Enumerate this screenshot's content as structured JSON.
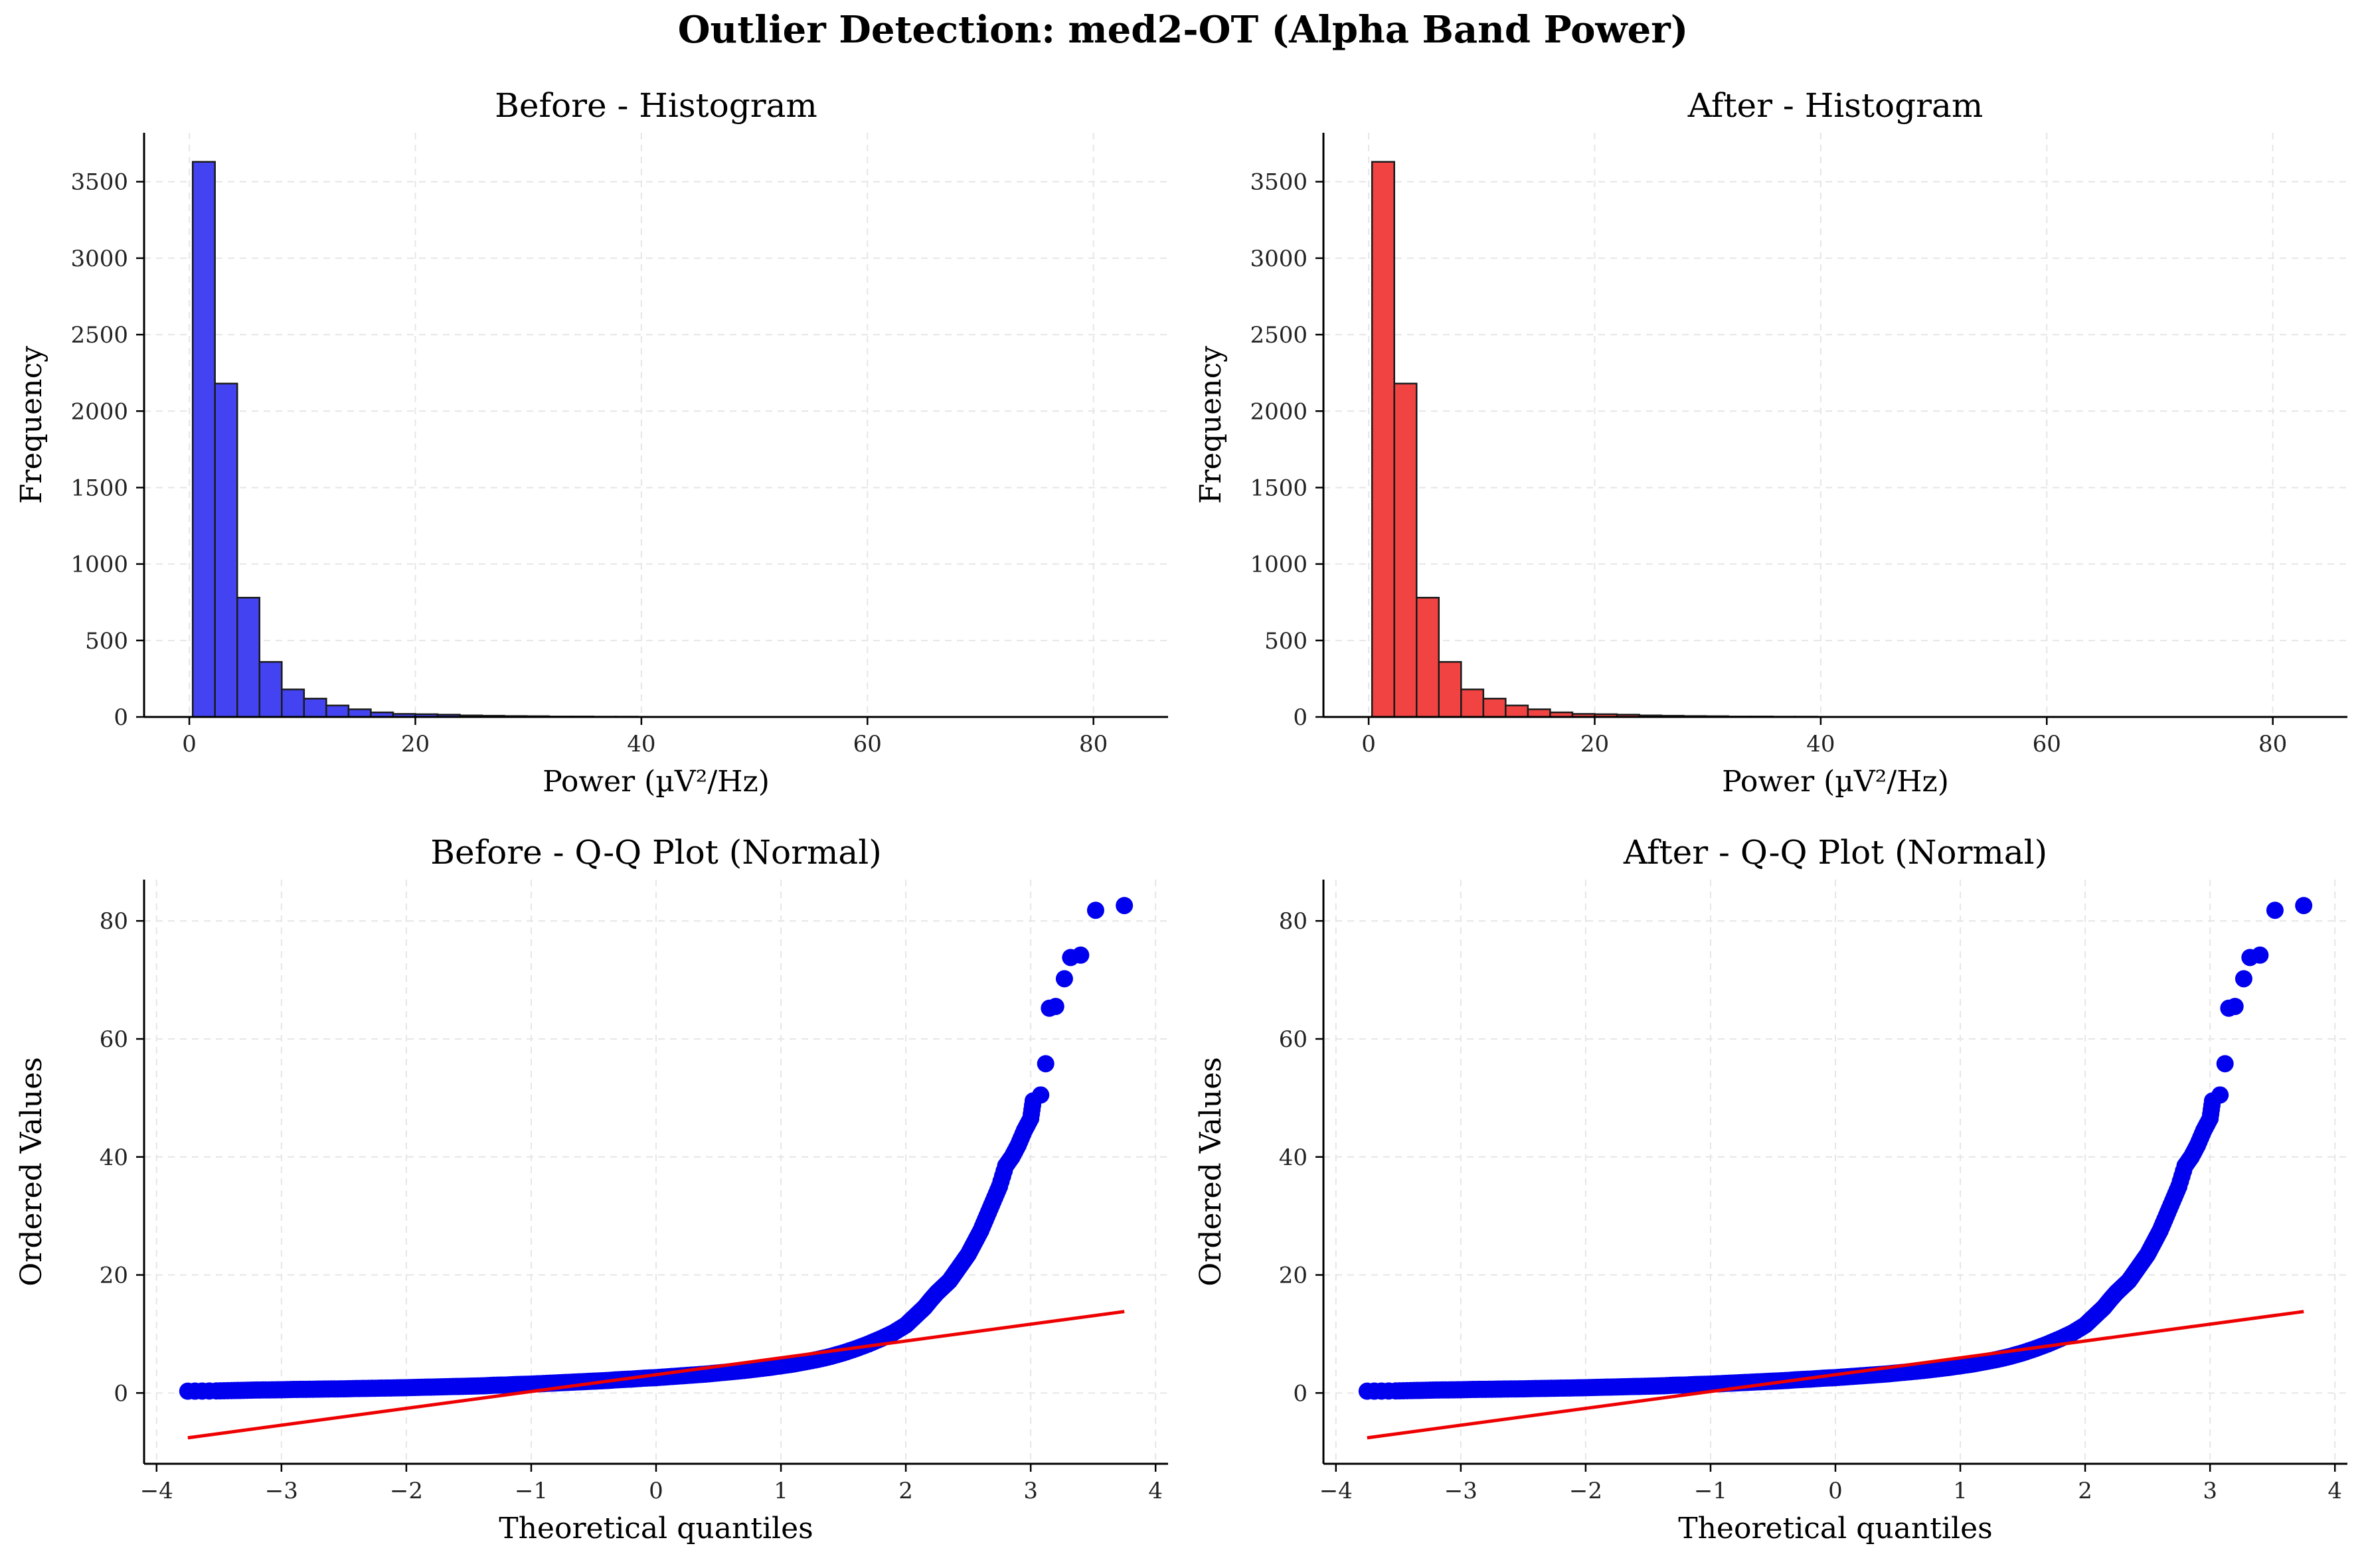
{
  "figure": {
    "title": "Outlier Detection: med2-OT (Alpha Band Power)"
  },
  "colors": {
    "before_bar": "#4343f2",
    "after_bar": "#f24343",
    "bar_edge": "#1a1a1a",
    "qq_points": "#0000ee",
    "qq_line": "#ee0000",
    "grid": "#e6e6e6",
    "axis": "#000000"
  },
  "chart_data": [
    {
      "type": "bar",
      "panel": "before-histogram",
      "title": "Before - Histogram",
      "xlabel": "Power (µV²/Hz)",
      "ylabel": "Frequency",
      "xlim": [
        -4.0,
        86.6
      ],
      "ylim": [
        0,
        3820
      ],
      "xticks": [
        0,
        20,
        40,
        60,
        80
      ],
      "yticks": [
        0,
        500,
        1000,
        1500,
        2000,
        2500,
        3000,
        3500
      ],
      "grid": true,
      "bin_start": 0.3,
      "bin_width": 1.97,
      "values": [
        3630,
        2180,
        780,
        360,
        180,
        120,
        75,
        50,
        30,
        20,
        18,
        15,
        10,
        8,
        6,
        5,
        3,
        3,
        2,
        2,
        1,
        1,
        1,
        1,
        1,
        1,
        0,
        0,
        0,
        0,
        0,
        0,
        0,
        0,
        0,
        0,
        0,
        0,
        0,
        0,
        0,
        0
      ]
    },
    {
      "type": "bar",
      "panel": "after-histogram",
      "title": "After - Histogram",
      "xlabel": "Power (µV²/Hz)",
      "ylabel": "Frequency",
      "xlim": [
        -4.0,
        86.6
      ],
      "ylim": [
        0,
        3820
      ],
      "xticks": [
        0,
        20,
        40,
        60,
        80
      ],
      "yticks": [
        0,
        500,
        1000,
        1500,
        2000,
        2500,
        3000,
        3500
      ],
      "grid": true,
      "bin_start": 0.3,
      "bin_width": 1.97,
      "values": [
        3630,
        2180,
        780,
        360,
        180,
        120,
        75,
        50,
        30,
        20,
        18,
        15,
        10,
        8,
        6,
        5,
        3,
        3,
        2,
        2,
        1,
        1,
        1,
        1,
        1,
        1,
        0,
        0,
        0,
        0,
        0,
        0,
        0,
        0,
        0,
        0,
        0,
        0,
        0,
        0,
        0,
        0
      ]
    },
    {
      "type": "scatter",
      "panel": "before-qq",
      "title": "Before - Q-Q Plot (Normal)",
      "xlabel": "Theoretical quantiles",
      "ylabel": "Ordered Values",
      "xlim": [
        -4.1,
        4.1
      ],
      "ylim": [
        -12,
        87
      ],
      "xticks": [
        -4,
        -3,
        -2,
        -1,
        0,
        1,
        2,
        3,
        4
      ],
      "yticks": [
        0,
        20,
        40,
        60,
        80
      ],
      "grid": true,
      "points": [
        [
          -3.75,
          0.3
        ],
        [
          -3.52,
          0.35
        ],
        [
          -3.4,
          0.4
        ],
        [
          -3.3,
          0.45
        ],
        [
          -3.2,
          0.5
        ],
        [
          -3.1,
          0.52
        ],
        [
          -3.0,
          0.55
        ],
        [
          -2.9,
          0.6
        ],
        [
          -2.8,
          0.62
        ],
        [
          -2.7,
          0.65
        ],
        [
          -2.6,
          0.68
        ],
        [
          -2.5,
          0.7
        ],
        [
          -2.4,
          0.75
        ],
        [
          -2.3,
          0.78
        ],
        [
          -2.2,
          0.82
        ],
        [
          -2.1,
          0.85
        ],
        [
          -2.0,
          0.9
        ],
        [
          -1.9,
          0.95
        ],
        [
          -1.8,
          1.0
        ],
        [
          -1.7,
          1.05
        ],
        [
          -1.6,
          1.1
        ],
        [
          -1.5,
          1.15
        ],
        [
          -1.4,
          1.2
        ],
        [
          -1.3,
          1.3
        ],
        [
          -1.2,
          1.35
        ],
        [
          -1.1,
          1.45
        ],
        [
          -1.0,
          1.5
        ],
        [
          -0.9,
          1.6
        ],
        [
          -0.8,
          1.7
        ],
        [
          -0.7,
          1.8
        ],
        [
          -0.6,
          1.9
        ],
        [
          -0.5,
          2.0
        ],
        [
          -0.4,
          2.1
        ],
        [
          -0.3,
          2.25
        ],
        [
          -0.2,
          2.35
        ],
        [
          -0.1,
          2.5
        ],
        [
          0.0,
          2.6
        ],
        [
          0.1,
          2.75
        ],
        [
          0.2,
          2.9
        ],
        [
          0.3,
          3.05
        ],
        [
          0.4,
          3.2
        ],
        [
          0.5,
          3.4
        ],
        [
          0.6,
          3.6
        ],
        [
          0.7,
          3.8
        ],
        [
          0.8,
          4.05
        ],
        [
          0.9,
          4.3
        ],
        [
          1.0,
          4.6
        ],
        [
          1.1,
          4.9
        ],
        [
          1.2,
          5.3
        ],
        [
          1.3,
          5.7
        ],
        [
          1.4,
          6.2
        ],
        [
          1.5,
          6.8
        ],
        [
          1.6,
          7.5
        ],
        [
          1.7,
          8.3
        ],
        [
          1.8,
          9.2
        ],
        [
          1.9,
          10.2
        ],
        [
          2.0,
          11.5
        ],
        [
          2.05,
          12.5
        ],
        [
          2.1,
          13.5
        ],
        [
          2.15,
          14.5
        ],
        [
          2.2,
          15.8
        ],
        [
          2.25,
          17.0
        ],
        [
          2.3,
          18.0
        ],
        [
          2.35,
          19.0
        ],
        [
          2.4,
          20.5
        ],
        [
          2.45,
          22.0
        ],
        [
          2.5,
          23.5
        ],
        [
          2.55,
          25.5
        ],
        [
          2.6,
          27.5
        ],
        [
          2.65,
          30.0
        ],
        [
          2.7,
          32.5
        ],
        [
          2.75,
          35.0
        ],
        [
          2.8,
          38.5
        ],
        [
          2.85,
          40.0
        ],
        [
          2.9,
          42.0
        ],
        [
          2.95,
          44.5
        ],
        [
          3.0,
          46.5
        ],
        [
          3.02,
          49.5
        ],
        [
          3.08,
          50.5
        ],
        [
          3.12,
          55.8
        ],
        [
          3.15,
          65.2
        ],
        [
          3.2,
          65.5
        ],
        [
          3.27,
          70.2
        ],
        [
          3.32,
          73.8
        ],
        [
          3.4,
          74.2
        ],
        [
          3.52,
          81.8
        ],
        [
          3.75,
          82.6
        ]
      ],
      "fit_line": {
        "x": [
          -3.75,
          3.75
        ],
        "y": [
          -7.6,
          13.8
        ]
      }
    },
    {
      "type": "scatter",
      "panel": "after-qq",
      "title": "After - Q-Q Plot (Normal)",
      "xlabel": "Theoretical quantiles",
      "ylabel": "Ordered Values",
      "xlim": [
        -4.1,
        4.1
      ],
      "ylim": [
        -12,
        87
      ],
      "xticks": [
        -4,
        -3,
        -2,
        -1,
        0,
        1,
        2,
        3,
        4
      ],
      "yticks": [
        0,
        20,
        40,
        60,
        80
      ],
      "grid": true,
      "points": [
        [
          -3.75,
          0.3
        ],
        [
          -3.52,
          0.35
        ],
        [
          -3.4,
          0.4
        ],
        [
          -3.3,
          0.45
        ],
        [
          -3.2,
          0.5
        ],
        [
          -3.1,
          0.52
        ],
        [
          -3.0,
          0.55
        ],
        [
          -2.9,
          0.6
        ],
        [
          -2.8,
          0.62
        ],
        [
          -2.7,
          0.65
        ],
        [
          -2.6,
          0.68
        ],
        [
          -2.5,
          0.7
        ],
        [
          -2.4,
          0.75
        ],
        [
          -2.3,
          0.78
        ],
        [
          -2.2,
          0.82
        ],
        [
          -2.1,
          0.85
        ],
        [
          -2.0,
          0.9
        ],
        [
          -1.9,
          0.95
        ],
        [
          -1.8,
          1.0
        ],
        [
          -1.7,
          1.05
        ],
        [
          -1.6,
          1.1
        ],
        [
          -1.5,
          1.15
        ],
        [
          -1.4,
          1.2
        ],
        [
          -1.3,
          1.3
        ],
        [
          -1.2,
          1.35
        ],
        [
          -1.1,
          1.45
        ],
        [
          -1.0,
          1.5
        ],
        [
          -0.9,
          1.6
        ],
        [
          -0.8,
          1.7
        ],
        [
          -0.7,
          1.8
        ],
        [
          -0.6,
          1.9
        ],
        [
          -0.5,
          2.0
        ],
        [
          -0.4,
          2.1
        ],
        [
          -0.3,
          2.25
        ],
        [
          -0.2,
          2.35
        ],
        [
          -0.1,
          2.5
        ],
        [
          0.0,
          2.6
        ],
        [
          0.1,
          2.75
        ],
        [
          0.2,
          2.9
        ],
        [
          0.3,
          3.05
        ],
        [
          0.4,
          3.2
        ],
        [
          0.5,
          3.4
        ],
        [
          0.6,
          3.6
        ],
        [
          0.7,
          3.8
        ],
        [
          0.8,
          4.05
        ],
        [
          0.9,
          4.3
        ],
        [
          1.0,
          4.6
        ],
        [
          1.1,
          4.9
        ],
        [
          1.2,
          5.3
        ],
        [
          1.3,
          5.7
        ],
        [
          1.4,
          6.2
        ],
        [
          1.5,
          6.8
        ],
        [
          1.6,
          7.5
        ],
        [
          1.7,
          8.3
        ],
        [
          1.8,
          9.2
        ],
        [
          1.9,
          10.2
        ],
        [
          2.0,
          11.5
        ],
        [
          2.05,
          12.5
        ],
        [
          2.1,
          13.5
        ],
        [
          2.15,
          14.5
        ],
        [
          2.2,
          15.8
        ],
        [
          2.25,
          17.0
        ],
        [
          2.3,
          18.0
        ],
        [
          2.35,
          19.0
        ],
        [
          2.4,
          20.5
        ],
        [
          2.45,
          22.0
        ],
        [
          2.5,
          23.5
        ],
        [
          2.55,
          25.5
        ],
        [
          2.6,
          27.5
        ],
        [
          2.65,
          30.0
        ],
        [
          2.7,
          32.5
        ],
        [
          2.75,
          35.0
        ],
        [
          2.8,
          38.5
        ],
        [
          2.85,
          40.0
        ],
        [
          2.9,
          42.0
        ],
        [
          2.95,
          44.5
        ],
        [
          3.0,
          46.5
        ],
        [
          3.02,
          49.5
        ],
        [
          3.08,
          50.5
        ],
        [
          3.12,
          55.8
        ],
        [
          3.15,
          65.2
        ],
        [
          3.2,
          65.5
        ],
        [
          3.27,
          70.2
        ],
        [
          3.32,
          73.8
        ],
        [
          3.4,
          74.2
        ],
        [
          3.52,
          81.8
        ],
        [
          3.75,
          82.6
        ]
      ],
      "fit_line": {
        "x": [
          -3.75,
          3.75
        ],
        "y": [
          -7.6,
          13.8
        ]
      }
    }
  ]
}
